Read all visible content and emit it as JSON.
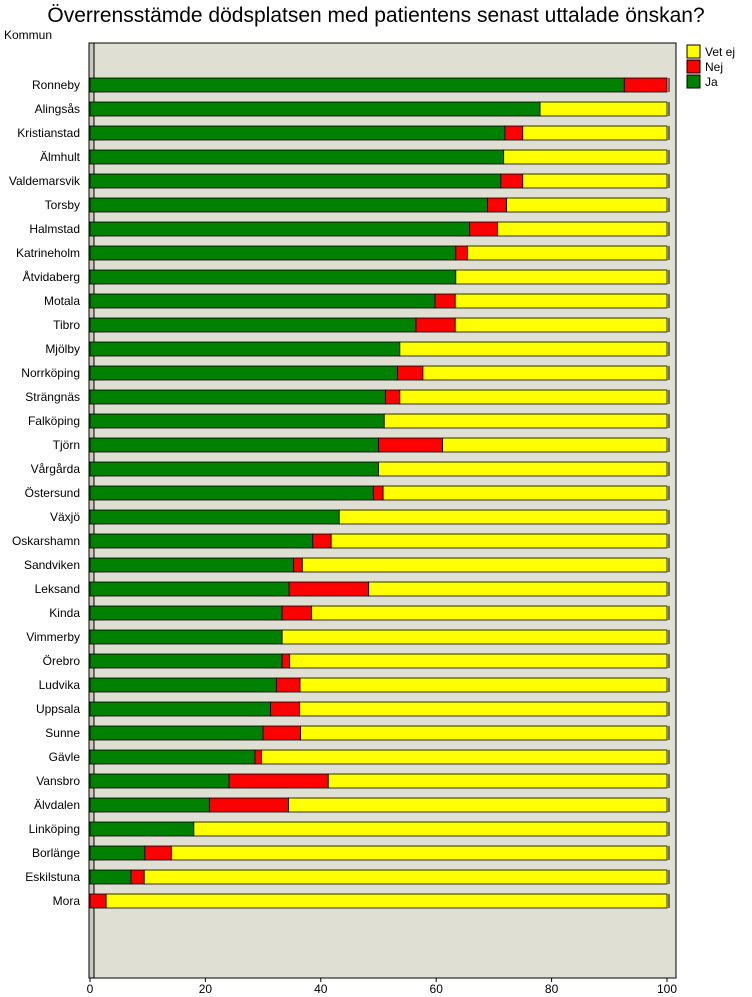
{
  "chart_data": {
    "type": "bar",
    "orientation": "horizontal",
    "stacked": true,
    "title": "Överrensstämde dödsplatsen med patientens senast uttalade önskan?",
    "category_axis_title": "Kommun",
    "xlim": [
      0,
      100
    ],
    "xticks": [
      0,
      20,
      40,
      60,
      80,
      100
    ],
    "grid": false,
    "legend_position": "top-right",
    "categories": [
      "Ronneby",
      "Alingsås",
      "Kristianstad",
      "Älmhult",
      "Valdemarsvik",
      "Torsby",
      "Halmstad",
      "Katrineholm",
      "Åtvidaberg",
      "Motala",
      "Tibro",
      "Mjölby",
      "Norrköping",
      "Strängnäs",
      "Falköping",
      "Tjörn",
      "Vårgårda",
      "Östersund",
      "Växjö",
      "Oskarshamn",
      "Sandviken",
      "Leksand",
      "Kinda",
      "Vimmerby",
      "Örebro",
      "Ludvika",
      "Uppsala",
      "Sunne",
      "Gävle",
      "Vansbro",
      "Älvdalen",
      "Linköping",
      "Borlänge",
      "Eskilstuna",
      "Mora"
    ],
    "series": [
      {
        "name": "Ja",
        "color": "#008000",
        "values": [
          92.6,
          78.0,
          71.9,
          71.7,
          71.2,
          68.9,
          65.8,
          63.4,
          63.4,
          59.8,
          56.5,
          53.7,
          53.3,
          51.2,
          51.0,
          50.0,
          50.0,
          49.1,
          43.2,
          38.6,
          35.3,
          34.5,
          33.3,
          33.3,
          33.3,
          32.3,
          31.3,
          30.0,
          28.6,
          24.1,
          20.7,
          18.0,
          9.5,
          7.1,
          0.0
        ]
      },
      {
        "name": "Nej",
        "color": "#ff0000",
        "values": [
          7.4,
          0.0,
          3.1,
          0.0,
          3.8,
          3.3,
          4.8,
          2.0,
          0.0,
          3.5,
          6.8,
          0.0,
          4.4,
          2.5,
          0.0,
          11.1,
          0.0,
          1.7,
          0.0,
          3.2,
          1.5,
          13.8,
          5.1,
          0.0,
          1.3,
          4.1,
          5.0,
          6.5,
          1.1,
          17.2,
          13.7,
          0.0,
          4.6,
          2.3,
          2.8
        ]
      },
      {
        "name": "Vet ej",
        "color": "#ffff00",
        "values": [
          0.0,
          22.0,
          25.0,
          28.3,
          25.0,
          27.8,
          29.4,
          34.6,
          36.6,
          36.7,
          36.7,
          46.3,
          42.3,
          46.3,
          49.0,
          38.9,
          50.0,
          49.2,
          56.8,
          58.2,
          63.2,
          51.7,
          61.6,
          66.7,
          65.4,
          63.6,
          63.7,
          63.5,
          70.3,
          58.7,
          65.6,
          82.0,
          85.9,
          90.6,
          97.2
        ]
      }
    ],
    "legend_order": [
      "Vet ej",
      "Nej",
      "Ja"
    ]
  }
}
